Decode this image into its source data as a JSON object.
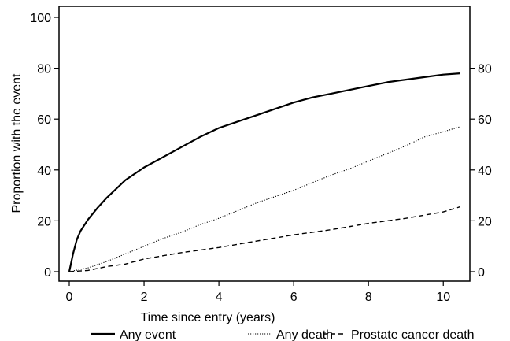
{
  "chart_data": {
    "type": "line",
    "xlabel": "Time since entry (years)",
    "ylabel": "Proportion with the event",
    "xlim": [
      0,
      10.5
    ],
    "ylim": [
      0,
      100
    ],
    "x_ticks": [
      "0",
      "2",
      "4",
      "6",
      "8",
      "10"
    ],
    "y_ticks_left": [
      "0",
      "20",
      "40",
      "60",
      "80",
      "100"
    ],
    "y_ticks_right": [
      "0",
      "20",
      "40",
      "60",
      "80"
    ],
    "grid": false,
    "legend_position": "bottom",
    "series": [
      {
        "name": "Any event",
        "style": "solid",
        "x": [
          0,
          0.1,
          0.2,
          0.3,
          0.5,
          0.75,
          1,
          1.25,
          1.5,
          2,
          2.5,
          3,
          3.5,
          4,
          4.5,
          5,
          5.5,
          6,
          6.5,
          7,
          7.5,
          8,
          8.5,
          9,
          9.5,
          10,
          10.45
        ],
        "y": [
          0,
          7,
          12.5,
          16,
          20.5,
          25,
          29,
          32.5,
          36,
          41,
          45,
          49,
          53,
          56.5,
          59,
          61.5,
          64,
          66.5,
          68.5,
          70,
          71.5,
          73,
          74.5,
          75.5,
          76.5,
          77.5,
          78
        ]
      },
      {
        "name": "Any death",
        "style": "dotted",
        "x": [
          0,
          0.5,
          1,
          1.5,
          2,
          2.5,
          3,
          3.5,
          4,
          4.5,
          5,
          5.5,
          6,
          6.5,
          7,
          7.5,
          8,
          8.5,
          9,
          9.5,
          10,
          10.45
        ],
        "y": [
          0,
          1.5,
          4,
          7,
          10,
          13,
          15.5,
          18.5,
          21,
          24,
          27,
          29.5,
          32,
          35,
          38,
          40.5,
          43.5,
          46.5,
          49.5,
          53,
          55,
          57
        ]
      },
      {
        "name": "Prostate cancer death",
        "style": "dashed",
        "x": [
          0,
          0.5,
          1,
          1.5,
          2,
          3,
          4,
          5,
          6,
          7,
          8,
          9,
          10,
          10.45
        ],
        "y": [
          0,
          0.5,
          2,
          3,
          5,
          7.5,
          9.5,
          12,
          14.5,
          16.5,
          19,
          21,
          23.5,
          25.5
        ]
      }
    ]
  }
}
